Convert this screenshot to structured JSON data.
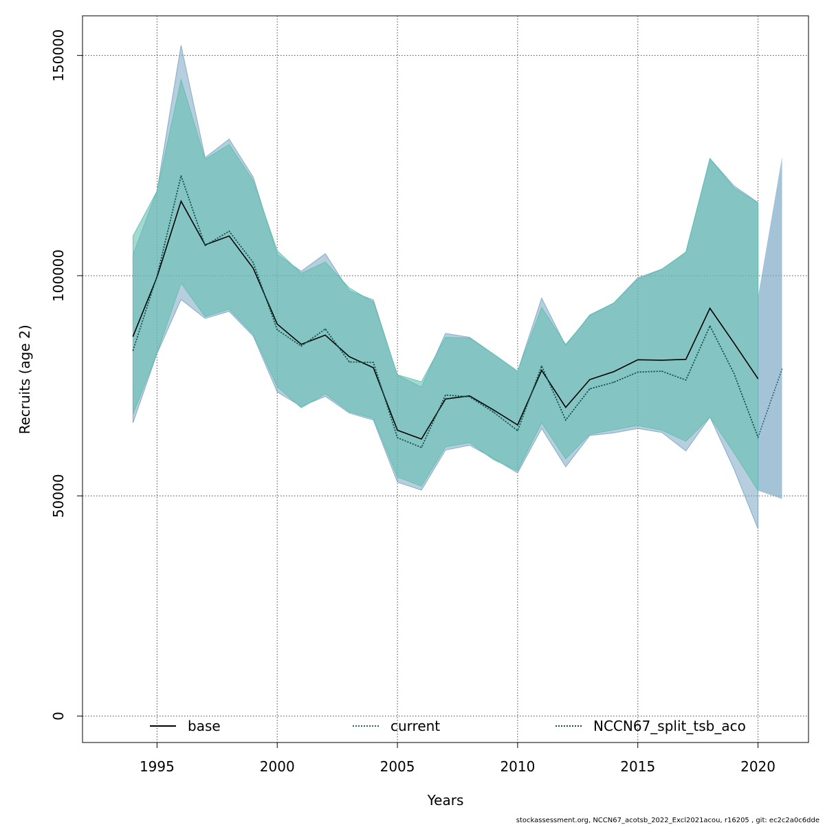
{
  "chart_data": {
    "type": "line",
    "xlabel": "Years",
    "ylabel": "Recruits (age 2)",
    "xlim": [
      1991.9,
      2022.1
    ],
    "ylim": [
      -6000,
      159000
    ],
    "xticks": [
      1995,
      2000,
      2005,
      2010,
      2015,
      2020
    ],
    "xtick_labels": [
      "1995",
      "2000",
      "2005",
      "2010",
      "2015",
      "2020"
    ],
    "yticks": [
      0,
      50000,
      100000,
      150000
    ],
    "ytick_labels": [
      "0",
      "50000",
      "100000",
      "150000"
    ],
    "grid": true,
    "legend_position": "bottom",
    "series": [
      {
        "name": "base",
        "color": "#000000",
        "line_style": "solid",
        "band_color": "#7ba6c4",
        "x": [
          1994,
          1995,
          1996,
          1997,
          1998,
          1999,
          2000,
          2001,
          2002,
          2003,
          2004,
          2005,
          2006,
          2007,
          2008,
          2009,
          2010,
          2011,
          2012,
          2013,
          2014,
          2015,
          2016,
          2017,
          2018,
          2019,
          2020
        ],
        "values": [
          86200,
          99700,
          116900,
          107000,
          109000,
          101700,
          89000,
          84400,
          86500,
          81600,
          79100,
          64900,
          62900,
          72000,
          72700,
          69500,
          66100,
          78500,
          70100,
          76400,
          78200,
          80900,
          80800,
          81000,
          92600,
          84700,
          76600
        ],
        "lower": [
          66600,
          82300,
          94600,
          90300,
          91900,
          86300,
          73600,
          70300,
          72600,
          68800,
          67200,
          53100,
          51300,
          60400,
          61500,
          58500,
          55200,
          65300,
          56600,
          63700,
          64300,
          65300,
          64400,
          60200,
          67900,
          56100,
          42500
        ],
        "upper": [
          104700,
          119300,
          152300,
          126800,
          131000,
          122400,
          104800,
          101000,
          105000,
          96500,
          94500,
          77400,
          74700,
          86900,
          86000,
          82200,
          78300,
          94900,
          84100,
          91100,
          93800,
          99500,
          101500,
          105300,
          126600,
          120400,
          116600
        ]
      },
      {
        "name": "current",
        "color": "#1f5f7a",
        "line_style": "dotted",
        "band_color": "#7ba6c4",
        "x": [
          1994,
          1995,
          1996,
          1997,
          1998,
          1999,
          2000,
          2001,
          2002,
          2003,
          2004,
          2005,
          2006,
          2007,
          2008,
          2009,
          2010,
          2011,
          2012,
          2013,
          2014,
          2015,
          2016,
          2017,
          2018,
          2019,
          2020,
          2021
        ],
        "values": [
          83000,
          99900,
          122700,
          106800,
          110100,
          103000,
          87700,
          84000,
          87900,
          80400,
          80300,
          63200,
          61000,
          72900,
          72500,
          69000,
          64800,
          79500,
          67200,
          74300,
          75800,
          78100,
          78300,
          76300,
          88600,
          77800,
          63300,
          78800
        ],
        "lower": [
          68500,
          82400,
          98300,
          90700,
          92400,
          86700,
          74800,
          70000,
          73200,
          69100,
          67600,
          54300,
          52200,
          61100,
          62100,
          58200,
          55700,
          66600,
          58400,
          64000,
          65000,
          66000,
          64900,
          62400,
          67900,
          59800,
          51200,
          49300
        ],
        "upper": [
          104800,
          118600,
          152700,
          126400,
          130800,
          122800,
          103900,
          100900,
          105500,
          95200,
          94700,
          77000,
          75300,
          87300,
          86000,
          82200,
          76600,
          95600,
          81100,
          88300,
          89600,
          95100,
          96900,
          98300,
          118800,
          108200,
          95200,
          127000
        ]
      },
      {
        "name": "NCCN67_split_tsb_aco",
        "color": "#0f4f4a",
        "line_style": "dotted",
        "band_color": "#5ebfae",
        "x": [
          1994,
          1995,
          1996,
          1997,
          1998,
          1999,
          2000,
          2001,
          2002,
          2003,
          2004,
          2005,
          2006,
          2007,
          2008,
          2009,
          2010,
          2011,
          2012,
          2013,
          2014,
          2015,
          2016,
          2017,
          2018,
          2019,
          2020
        ],
        "values": [
          83000,
          99900,
          122700,
          106800,
          110100,
          103000,
          87700,
          84000,
          87900,
          80400,
          80300,
          63200,
          61000,
          72900,
          72500,
          69000,
          64800,
          79500,
          67200,
          74300,
          75800,
          78100,
          78300,
          76300,
          88600,
          77800,
          63300
        ],
        "lower": [
          68500,
          82400,
          98300,
          90700,
          92400,
          86700,
          74800,
          70000,
          73200,
          69100,
          67600,
          54300,
          52200,
          61100,
          62100,
          58200,
          55700,
          66600,
          58400,
          64000,
          65000,
          66000,
          64900,
          62400,
          67900,
          59800,
          51200
        ],
        "upper": [
          109000,
          119200,
          144500,
          126400,
          129800,
          121600,
          105700,
          100500,
          103100,
          97200,
          94000,
          77500,
          75900,
          86000,
          85800,
          82200,
          78300,
          92800,
          84400,
          90900,
          93800,
          99200,
          101400,
          105400,
          126600,
          119900,
          116500
        ]
      }
    ]
  },
  "footer": "stockassessment.org, NCCN67_acotsb_2022_Excl2021acou, r16205 , git: ec2c2a0c6dde"
}
